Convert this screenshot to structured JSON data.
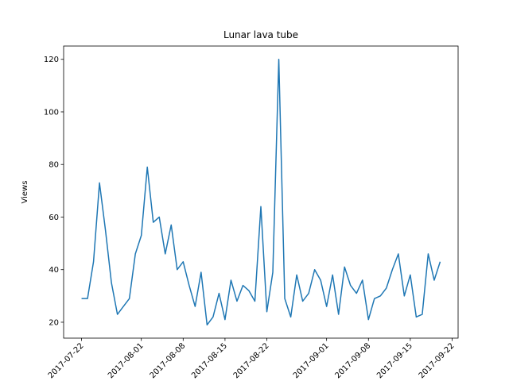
{
  "chart_data": {
    "type": "line",
    "title": "Lunar lava tube",
    "y_label": "Views",
    "x": [
      "2017-07-22",
      "2017-07-23",
      "2017-07-24",
      "2017-07-25",
      "2017-07-26",
      "2017-07-27",
      "2017-07-28",
      "2017-07-29",
      "2017-07-30",
      "2017-07-31",
      "2017-08-01",
      "2017-08-02",
      "2017-08-03",
      "2017-08-04",
      "2017-08-05",
      "2017-08-06",
      "2017-08-07",
      "2017-08-08",
      "2017-08-09",
      "2017-08-10",
      "2017-08-11",
      "2017-08-12",
      "2017-08-13",
      "2017-08-14",
      "2017-08-15",
      "2017-08-16",
      "2017-08-17",
      "2017-08-18",
      "2017-08-19",
      "2017-08-20",
      "2017-08-21",
      "2017-08-22",
      "2017-08-23",
      "2017-08-24",
      "2017-08-25",
      "2017-08-26",
      "2017-08-27",
      "2017-08-28",
      "2017-08-29",
      "2017-08-30",
      "2017-08-31",
      "2017-09-01",
      "2017-09-02",
      "2017-09-03",
      "2017-09-04",
      "2017-09-05",
      "2017-09-06",
      "2017-09-07",
      "2017-09-08",
      "2017-09-09",
      "2017-09-10",
      "2017-09-11",
      "2017-09-12",
      "2017-09-13",
      "2017-09-14",
      "2017-09-15",
      "2017-09-16",
      "2017-09-17",
      "2017-09-18",
      "2017-09-19",
      "2017-09-20"
    ],
    "series": [
      {
        "name": "Views",
        "color": "#1f77b4",
        "values": [
          29,
          29,
          43,
          73,
          55,
          35,
          23,
          26,
          29,
          46,
          53,
          79,
          58,
          60,
          46,
          57,
          40,
          43,
          34,
          26,
          39,
          19,
          22,
          31,
          21,
          36,
          28,
          34,
          32,
          28,
          64,
          24,
          39,
          120,
          29,
          22,
          38,
          28,
          31,
          40,
          36,
          26,
          38,
          23,
          41,
          34,
          31,
          36,
          21,
          29,
          30,
          33,
          40,
          46,
          30,
          38,
          22,
          23,
          46,
          36,
          43
        ]
      }
    ],
    "xlim": [
      "2017-07-19",
      "2017-09-23"
    ],
    "xticks": [
      "2017-07-22",
      "2017-08-01",
      "2017-08-08",
      "2017-08-15",
      "2017-08-22",
      "2017-09-01",
      "2017-09-08",
      "2017-09-15",
      "2017-09-22"
    ],
    "ylim": [
      13.95,
      125.05
    ],
    "yticks": [
      20,
      40,
      60,
      80,
      100,
      120
    ],
    "grid": false
  }
}
